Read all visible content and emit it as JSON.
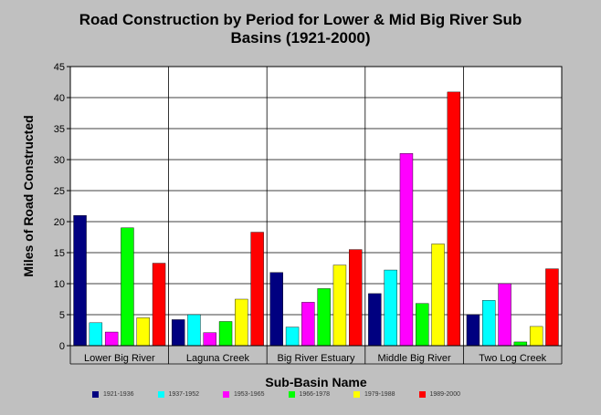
{
  "title_lines": [
    "Road Construction by Period for Lower & Mid Big River Sub",
    "Basins (1921-2000)"
  ],
  "chart_data": {
    "type": "bar",
    "title": "Road Construction by Period for Lower & Mid Big River Sub Basins (1921-2000)",
    "xlabel": "Sub-Basin Name",
    "ylabel": "Miles of Road Constructed",
    "ylim": [
      0,
      45
    ],
    "yticks": [
      0,
      5,
      10,
      15,
      20,
      25,
      30,
      35,
      40,
      45
    ],
    "grid": true,
    "legend_position": "bottom",
    "categories": [
      "Lower Big River",
      "Laguna Creek",
      "Big River Estuary",
      "Middle Big River",
      "Two Log Creek"
    ],
    "series": [
      {
        "name": "1921-1936",
        "color": "#000080",
        "values": [
          21.0,
          4.2,
          11.8,
          8.4,
          5.0
        ]
      },
      {
        "name": "1937-1952",
        "color": "#00ffff",
        "values": [
          3.7,
          5.0,
          3.0,
          12.2,
          7.3
        ]
      },
      {
        "name": "1953-1965",
        "color": "#ff00ff",
        "values": [
          2.2,
          2.1,
          7.0,
          31.0,
          10.0
        ]
      },
      {
        "name": "1966-1978",
        "color": "#00ff00",
        "values": [
          19.0,
          3.9,
          9.2,
          6.8,
          0.6
        ]
      },
      {
        "name": "1979-1988",
        "color": "#ffff00",
        "values": [
          4.5,
          7.5,
          13.0,
          16.4,
          3.1
        ]
      },
      {
        "name": "1989-2000",
        "color": "#ff0000",
        "values": [
          13.3,
          18.3,
          15.5,
          40.9,
          12.4
        ]
      }
    ]
  }
}
